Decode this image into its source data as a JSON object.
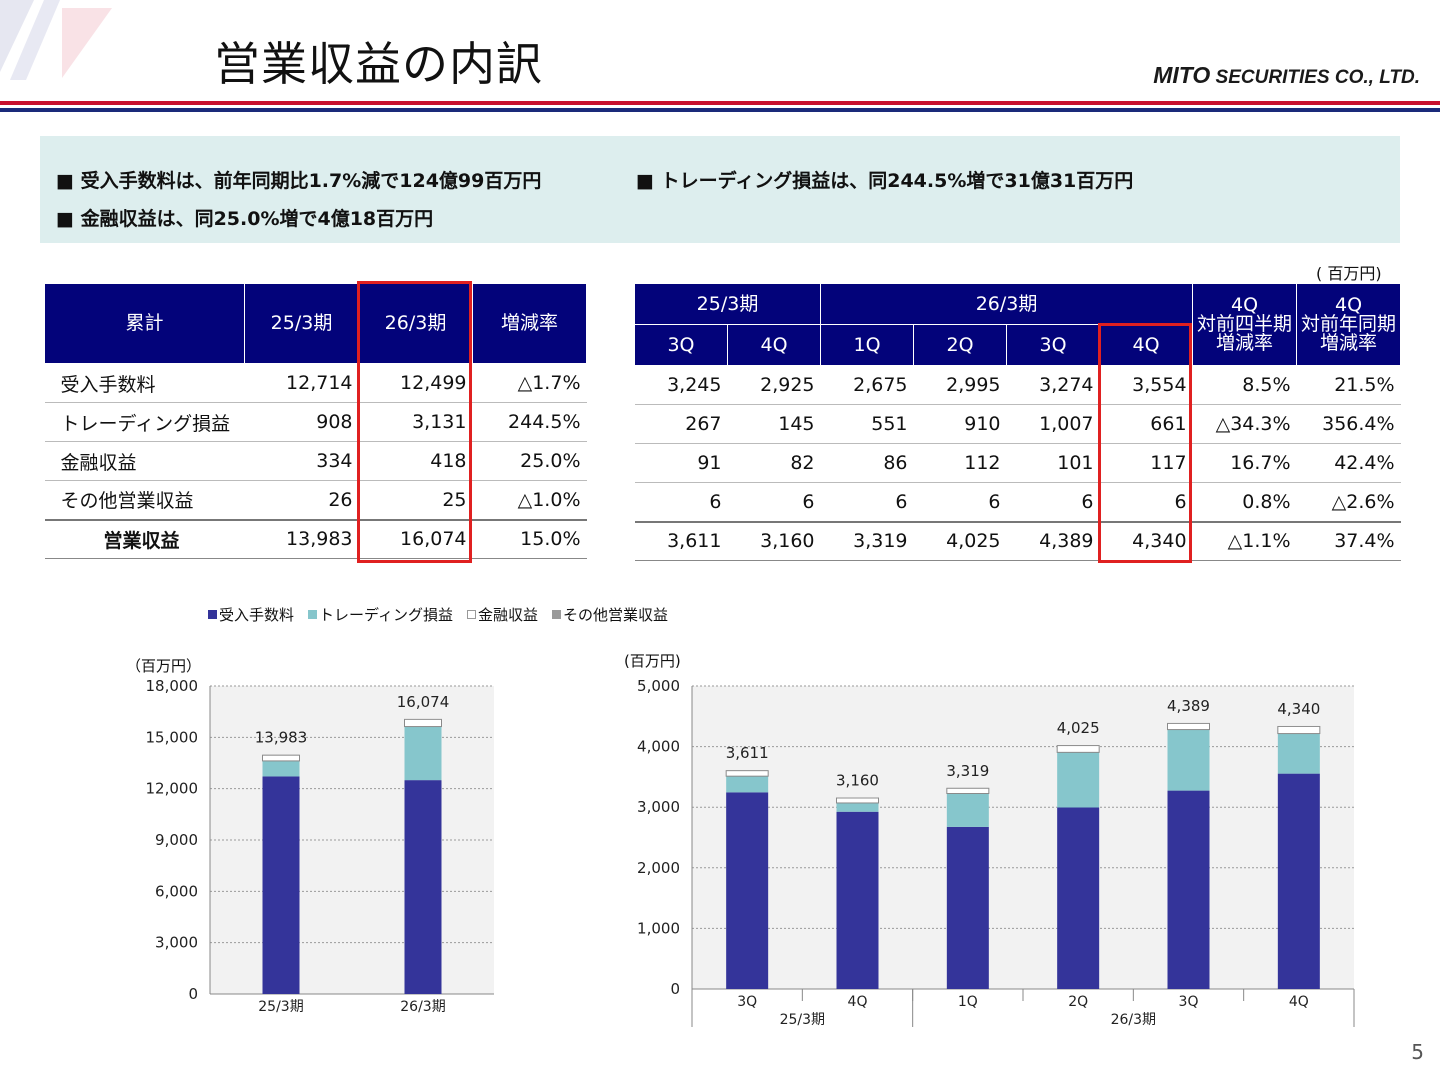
{
  "title": "営業収益の内訳",
  "logo": {
    "part1": "MITO",
    "part2": " SECURITIES CO., LTD."
  },
  "summary": {
    "items": [
      "■ 受入手数料は、前年同期比1.7%減で124億99百万円",
      "■ トレーディング損益は、同244.5%増で31億31百万円",
      "■ 金融収益は、同25.0%増で4億18百万円"
    ]
  },
  "units": {
    "table": "( 百万円)",
    "chart_left": "（百万円）",
    "chart_right": "(百万円)"
  },
  "cumulative_table": {
    "headers": [
      "累計",
      "25/3期",
      "26/3期",
      "増減率"
    ],
    "rows": [
      {
        "label": "受入手数料",
        "v1": "12,714",
        "v2": "12,499",
        "rate": "△1.7%"
      },
      {
        "label": "トレーディング損益",
        "v1": "908",
        "v2": "3,131",
        "rate": "244.5%"
      },
      {
        "label": "金融収益",
        "v1": "334",
        "v2": "418",
        "rate": "25.0%"
      },
      {
        "label": "その他営業収益",
        "v1": "26",
        "v2": "25",
        "rate": "△1.0%"
      },
      {
        "label": "営業収益",
        "v1": "13,983",
        "v2": "16,074",
        "rate": "15.0%"
      }
    ]
  },
  "quarterly_table": {
    "period1": "25/3期",
    "period2": "26/3期",
    "qoq_header": [
      "4Q",
      "対前四半期",
      "増減率"
    ],
    "yoy_header": [
      "4Q",
      "対前年同期",
      "増減率"
    ],
    "quarters": [
      "3Q",
      "4Q",
      "1Q",
      "2Q",
      "3Q",
      "4Q"
    ],
    "rows": [
      [
        "3,245",
        "2,925",
        "2,675",
        "2,995",
        "3,274",
        "3,554",
        "8.5%",
        "21.5%"
      ],
      [
        "267",
        "145",
        "551",
        "910",
        "1,007",
        "661",
        "△34.3%",
        "356.4%"
      ],
      [
        "91",
        "82",
        "86",
        "112",
        "101",
        "117",
        "16.7%",
        "42.4%"
      ],
      [
        "6",
        "6",
        "6",
        "6",
        "6",
        "6",
        "0.8%",
        "△2.6%"
      ],
      [
        "3,611",
        "3,160",
        "3,319",
        "4,025",
        "4,389",
        "4,340",
        "△1.1%",
        "37.4%"
      ]
    ]
  },
  "legend": [
    {
      "name": "受入手数料",
      "color": "#34349a"
    },
    {
      "name": "トレーディング損益",
      "color": "#86c6cc"
    },
    {
      "name": "金融収益",
      "color": "#ffffff"
    },
    {
      "name": "その他営業収益",
      "color": "#9a9a9a"
    }
  ],
  "chart_data": [
    {
      "type": "bar",
      "stacked": true,
      "categories": [
        "25/3期",
        "26/3期"
      ],
      "series": [
        {
          "name": "受入手数料",
          "values": [
            12714,
            12499
          ]
        },
        {
          "name": "トレーディング損益",
          "values": [
            908,
            3131
          ]
        },
        {
          "name": "金融収益",
          "values": [
            334,
            418
          ]
        },
        {
          "name": "その他営業収益",
          "values": [
            26,
            25
          ]
        }
      ],
      "totals": [
        13983,
        16074
      ],
      "total_labels": [
        "13,983",
        "16,074"
      ],
      "ylim": [
        0,
        18000
      ],
      "yticks": [
        0,
        3000,
        6000,
        9000,
        12000,
        15000,
        18000
      ],
      "ytick_labels": [
        "0",
        "3,000",
        "6,000",
        "9,000",
        "12,000",
        "15,000",
        "18,000"
      ],
      "ylabel": "（百万円）",
      "grid": true,
      "legend": "top"
    },
    {
      "type": "bar",
      "stacked": true,
      "categories": [
        "3Q",
        "4Q",
        "1Q",
        "2Q",
        "3Q",
        "4Q"
      ],
      "groups": [
        {
          "label": "25/3期",
          "span": 2
        },
        {
          "label": "26/3期",
          "span": 4
        }
      ],
      "series": [
        {
          "name": "受入手数料",
          "values": [
            3245,
            2925,
            2675,
            2995,
            3274,
            3554
          ]
        },
        {
          "name": "トレーディング損益",
          "values": [
            267,
            145,
            551,
            910,
            1007,
            661
          ]
        },
        {
          "name": "金融収益",
          "values": [
            91,
            82,
            86,
            112,
            101,
            117
          ]
        },
        {
          "name": "その他営業収益",
          "values": [
            6,
            6,
            6,
            6,
            6,
            6
          ]
        }
      ],
      "totals": [
        3611,
        3160,
        3319,
        4025,
        4389,
        4340
      ],
      "total_labels": [
        "3,611",
        "3,160",
        "3,319",
        "4,025",
        "4,389",
        "4,340"
      ],
      "ylim": [
        0,
        5000
      ],
      "yticks": [
        0,
        1000,
        2000,
        3000,
        4000,
        5000
      ],
      "ytick_labels": [
        "0",
        "1,000",
        "2,000",
        "3,000",
        "4,000",
        "5,000"
      ],
      "ylabel": "(百万円)",
      "grid": true,
      "legend": "top"
    }
  ],
  "page_number": "5"
}
